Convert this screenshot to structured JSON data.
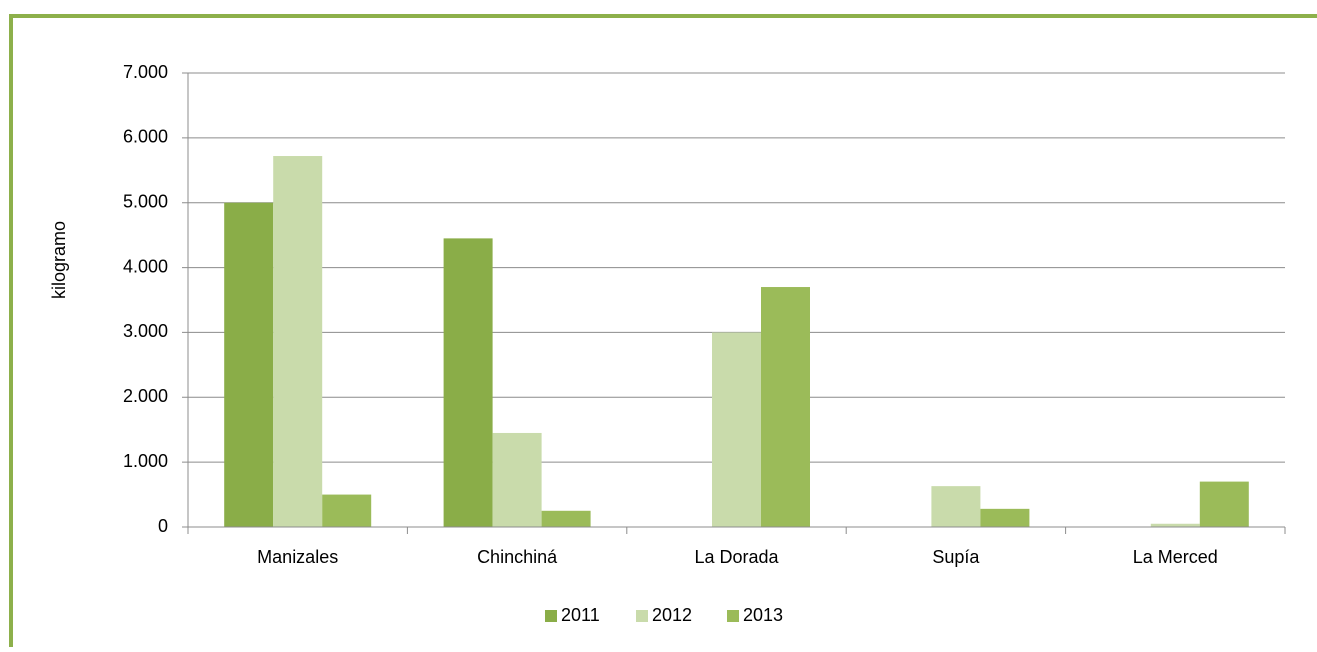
{
  "chart_data": {
    "type": "bar",
    "y_label": "kilogramo",
    "categories": [
      "Manizales",
      "Chinchiná",
      "La Dorada",
      "Supía",
      "La Merced"
    ],
    "series": [
      {
        "name": "2011",
        "color": "#8aad48",
        "values": [
          5000,
          4450,
          0,
          0,
          0
        ]
      },
      {
        "name": "2012",
        "color": "#c9dbab",
        "values": [
          5720,
          1450,
          3000,
          630,
          50
        ]
      },
      {
        "name": "2013",
        "color": "#9bbb59",
        "values": [
          500,
          250,
          3700,
          280,
          700
        ]
      }
    ],
    "ylim": [
      0,
      7000
    ],
    "yticks": [
      0,
      {
        "value": 1000,
        "label": "1.000"
      },
      {
        "value": 2000,
        "label": "2.000"
      },
      {
        "value": 3000,
        "label": "3.000"
      },
      {
        "value": 4000,
        "label": "4.000"
      },
      {
        "value": 5000,
        "label": "5.000"
      },
      {
        "value": 6000,
        "label": "6.000"
      },
      {
        "value": 7000,
        "label": "7.000"
      }
    ],
    "grid": true,
    "legend": "bottom"
  }
}
